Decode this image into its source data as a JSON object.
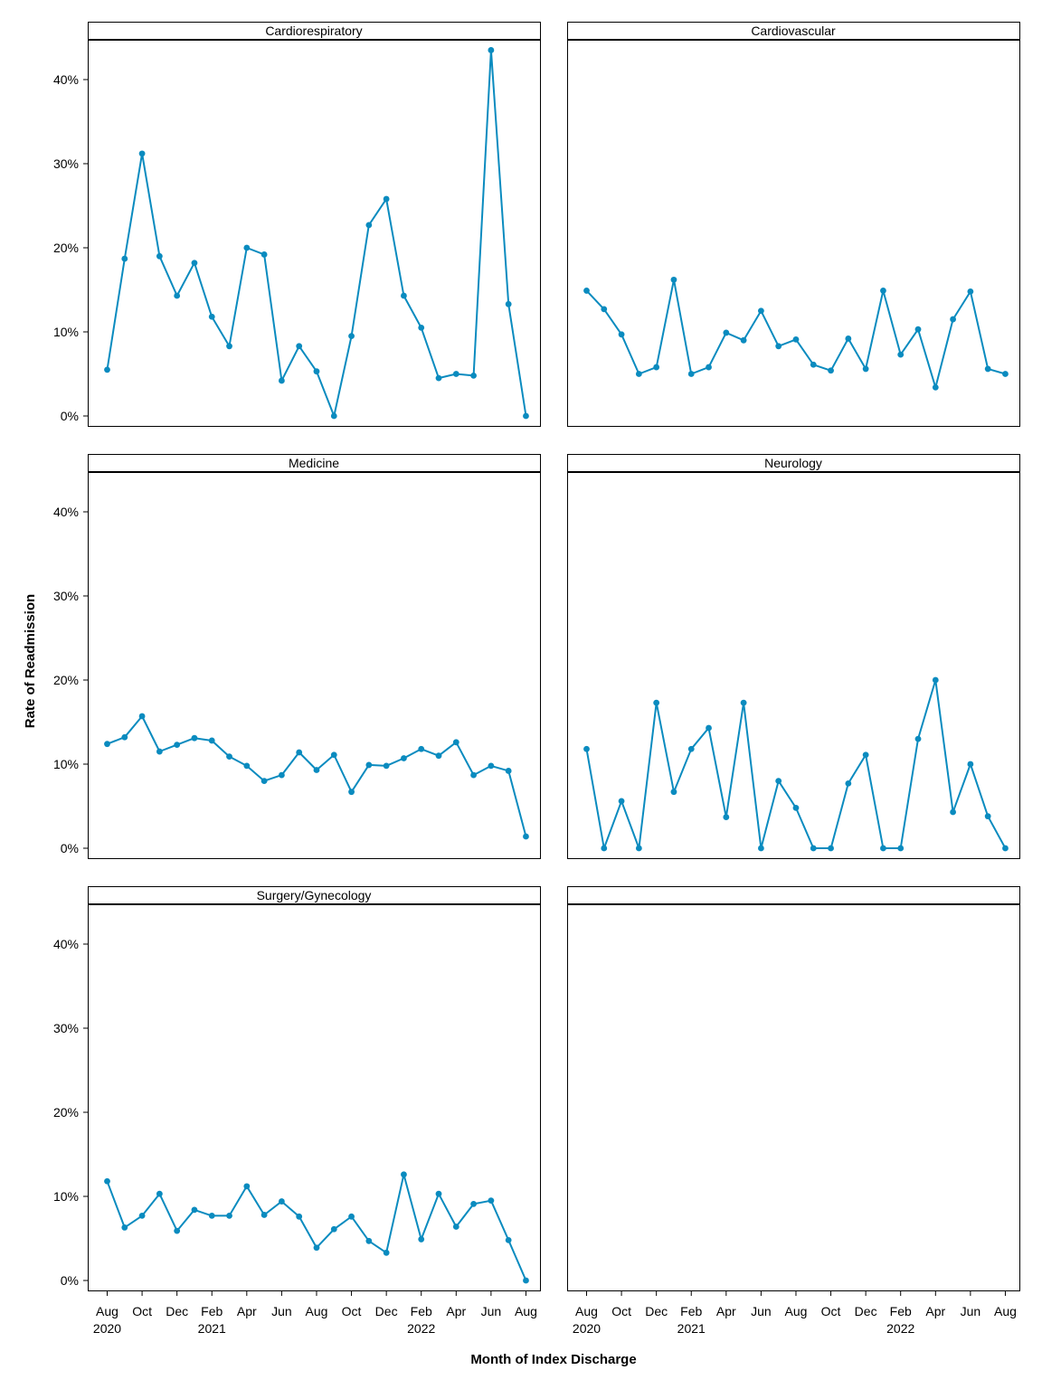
{
  "chart_data": {
    "type": "line",
    "kind": "faceted small multiples",
    "xlabel": "Month of Index Discharge",
    "ylabel": "Rate of Readmission",
    "x": [
      "2020-08",
      "2020-09",
      "2020-10",
      "2020-11",
      "2020-12",
      "2021-01",
      "2021-02",
      "2021-03",
      "2021-04",
      "2021-05",
      "2021-06",
      "2021-07",
      "2021-08",
      "2021-09",
      "2021-10",
      "2021-11",
      "2021-12",
      "2022-01",
      "2022-02",
      "2022-03",
      "2022-04",
      "2022-05",
      "2022-06",
      "2022-07",
      "2022-08"
    ],
    "x_tick_labels": [
      {
        "month": "Aug",
        "year": "2020"
      },
      {
        "month": "Oct",
        "year": ""
      },
      {
        "month": "Dec",
        "year": ""
      },
      {
        "month": "Feb",
        "year": "2021"
      },
      {
        "month": "Apr",
        "year": ""
      },
      {
        "month": "Jun",
        "year": ""
      },
      {
        "month": "Aug",
        "year": ""
      },
      {
        "month": "Oct",
        "year": ""
      },
      {
        "month": "Dec",
        "year": ""
      },
      {
        "month": "Feb",
        "year": "2022"
      },
      {
        "month": "Apr",
        "year": ""
      },
      {
        "month": "Jun",
        "year": ""
      },
      {
        "month": "Aug",
        "year": ""
      }
    ],
    "y_ticks": [
      0,
      10,
      20,
      30,
      40
    ],
    "y_tick_labels": [
      "0%",
      "10%",
      "20%",
      "30%",
      "40%"
    ],
    "ylim": [
      -1.2,
      44.7
    ],
    "grid": false,
    "legend": "none",
    "line_color": "#0a8bbf",
    "panels": [
      {
        "title": "Cardiorespiratory",
        "values": [
          5.5,
          18.7,
          31.2,
          19.0,
          14.3,
          18.2,
          11.8,
          8.3,
          20.0,
          19.2,
          4.2,
          8.3,
          5.3,
          0.0,
          9.5,
          22.7,
          25.8,
          14.3,
          10.5,
          4.5,
          5.0,
          4.8,
          43.5,
          13.3,
          0.0
        ]
      },
      {
        "title": "Cardiovascular",
        "values": [
          14.9,
          12.7,
          9.7,
          5.0,
          5.8,
          16.2,
          5.0,
          5.8,
          9.9,
          9.0,
          12.5,
          8.3,
          9.1,
          6.1,
          5.4,
          9.2,
          5.6,
          14.9,
          7.3,
          10.3,
          3.4,
          11.5,
          14.8,
          5.6,
          5.0
        ]
      },
      {
        "title": "Medicine",
        "values": [
          12.4,
          13.2,
          15.7,
          11.5,
          12.3,
          13.1,
          12.8,
          10.9,
          9.8,
          8.0,
          8.7,
          11.4,
          9.3,
          11.1,
          6.7,
          9.9,
          9.8,
          10.7,
          11.8,
          11.0,
          12.6,
          8.7,
          9.8,
          9.2,
          1.4
        ]
      },
      {
        "title": "Neurology",
        "values": [
          11.8,
          0.0,
          5.6,
          0.0,
          17.3,
          6.7,
          11.8,
          14.3,
          3.7,
          17.3,
          0.0,
          8.0,
          4.8,
          0.0,
          0.0,
          7.7,
          11.1,
          0.0,
          0.0,
          13.0,
          20.0,
          4.3,
          10.0,
          3.8,
          0.0
        ]
      },
      {
        "title": "Surgery/Gynecology",
        "values": [
          11.8,
          6.3,
          7.7,
          10.3,
          5.9,
          8.4,
          7.7,
          7.7,
          11.2,
          7.8,
          9.4,
          7.6,
          3.9,
          6.1,
          7.6,
          4.7,
          3.3,
          12.6,
          4.9,
          10.3,
          6.4,
          9.1,
          9.5,
          4.8,
          0.0
        ]
      },
      {
        "title": "",
        "values": []
      }
    ]
  }
}
